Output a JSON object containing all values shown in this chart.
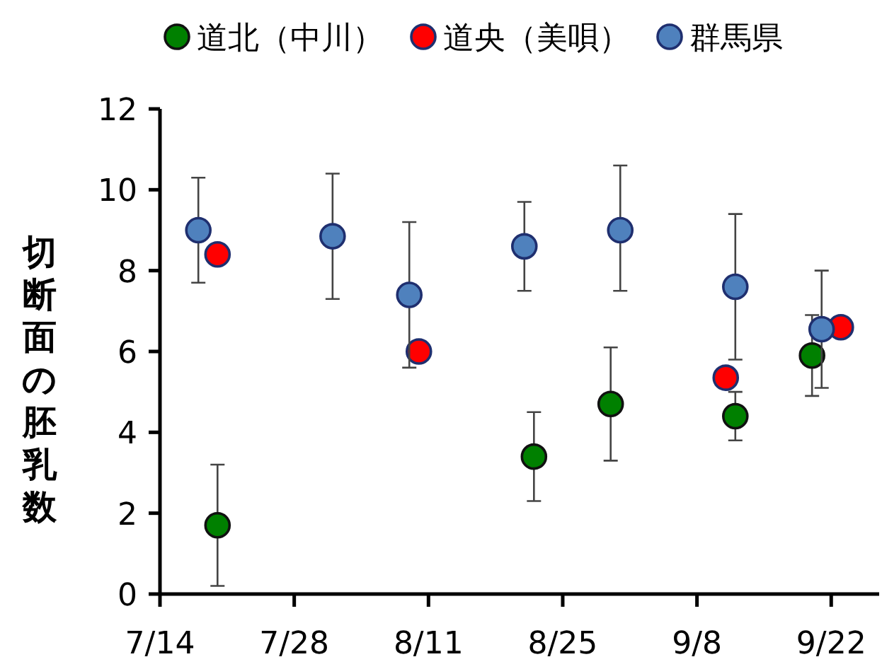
{
  "chart_data": {
    "type": "scatter",
    "ylabel": "切断面の胚乳数",
    "marker": "circle",
    "legend": "top",
    "grid": false,
    "xlim": [
      "--07-14",
      "--09-27"
    ],
    "ylim": [
      0,
      12
    ],
    "yticks": [
      0,
      2,
      4,
      6,
      8,
      10,
      12
    ],
    "xticks": [
      {
        "value": "--07-14",
        "label": "7/14"
      },
      {
        "value": "--07-28",
        "label": "7/28"
      },
      {
        "value": "--08-11",
        "label": "8/11"
      },
      {
        "value": "--08-25",
        "label": "8/25"
      },
      {
        "value": "--09-08",
        "label": "9/8"
      },
      {
        "value": "--09-22",
        "label": "9/22"
      }
    ],
    "series": [
      {
        "name": "道北（中川）",
        "color": "#008000",
        "x": [
          "--07-20",
          "--08-22",
          "--08-30",
          "--09-12",
          "--09-20"
        ],
        "values": [
          1.7,
          3.4,
          4.7,
          4.4,
          5.9
        ],
        "errors": [
          [
            0.2,
            3.2
          ],
          [
            2.3,
            4.5
          ],
          [
            3.3,
            6.1
          ],
          [
            3.8,
            5.0
          ],
          [
            4.9,
            6.9
          ]
        ]
      },
      {
        "name": "道央（美唄）",
        "color": "#ff0000",
        "x": [
          "--07-20",
          "--08-10",
          "--09-11",
          "--09-23"
        ],
        "values": [
          8.4,
          6.0,
          5.35,
          6.6
        ]
      },
      {
        "name": "群馬県",
        "color": "#4f81bd",
        "x": [
          "--07-18",
          "--08-01",
          "--08-09",
          "--08-21",
          "--08-31",
          "--09-12",
          "--09-21"
        ],
        "values": [
          9.0,
          8.85,
          7.4,
          8.6,
          9.0,
          7.6,
          6.55
        ],
        "errors": [
          [
            7.7,
            10.3
          ],
          [
            7.3,
            10.4
          ],
          [
            5.6,
            9.2
          ],
          [
            7.5,
            9.7
          ],
          [
            7.5,
            10.6
          ],
          [
            5.8,
            9.4
          ],
          [
            5.1,
            8.0
          ]
        ]
      }
    ]
  }
}
